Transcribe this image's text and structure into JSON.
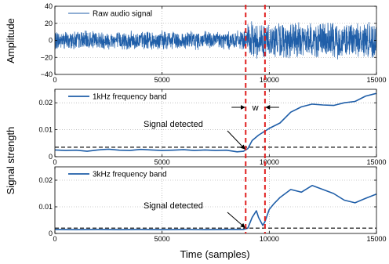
{
  "chart_data": [
    {
      "type": "line",
      "ylabel": "Amplitude",
      "xlim": [
        0,
        15000
      ],
      "ylim": [
        -40,
        40
      ],
      "xticks": [
        0,
        5000,
        10000,
        15000
      ],
      "yticks": [
        -40,
        -20,
        0,
        20,
        40
      ],
      "ytick_labels": [
        "−40",
        "−20",
        "0",
        "20",
        "40"
      ],
      "grid": true,
      "legend": "top-left",
      "series": [
        {
          "name": "Raw audio signal",
          "color": "#1f5ea8",
          "profile": {
            "segments": [
              [
                0,
                9000,
                12
              ],
              [
                9000,
                15000,
                23
              ]
            ]
          }
        }
      ]
    },
    {
      "type": "line",
      "xlim": [
        0,
        15000
      ],
      "ylim": [
        0,
        0.025
      ],
      "xticks": [
        0,
        5000,
        10000,
        15000
      ],
      "yticks": [
        0,
        0.01,
        0.02
      ],
      "ytick_labels": [
        "0",
        "0.01",
        "0.02"
      ],
      "grid": true,
      "legend": "top-left",
      "threshold": 0.0035,
      "series": [
        {
          "name": "1kHz frequency band",
          "color": "#1f5ea8",
          "x": [
            0,
            500,
            1000,
            1500,
            2000,
            2500,
            3000,
            3500,
            4000,
            4500,
            5000,
            5500,
            6000,
            6500,
            7000,
            7500,
            8000,
            8500,
            8800,
            9000,
            9200,
            9500,
            9800,
            10000,
            10500,
            11000,
            11500,
            12000,
            12500,
            13000,
            13500,
            14000,
            14500,
            15000
          ],
          "y": [
            0.0025,
            0.0023,
            0.0024,
            0.002,
            0.0025,
            0.0028,
            0.0024,
            0.0023,
            0.0027,
            0.0025,
            0.0023,
            0.0024,
            0.0026,
            0.0023,
            0.0025,
            0.0023,
            0.0024,
            0.0018,
            0.002,
            0.003,
            0.006,
            0.008,
            0.0095,
            0.0105,
            0.0125,
            0.0165,
            0.0185,
            0.0195,
            0.0192,
            0.019,
            0.02,
            0.0205,
            0.0225,
            0.0235
          ]
        }
      ]
    },
    {
      "type": "line",
      "xlim": [
        0,
        15000
      ],
      "ylim": [
        0,
        0.025
      ],
      "xticks": [
        0,
        5000,
        10000,
        15000
      ],
      "xtick_labels": [
        "0",
        "5000",
        "10000",
        "15000"
      ],
      "yticks": [
        0,
        0.01,
        0.02
      ],
      "ytick_labels": [
        "0",
        "0.01",
        "0.02"
      ],
      "xlabel": "Time (samples)",
      "grid": true,
      "legend": "top-left",
      "threshold": 0.002,
      "series": [
        {
          "name": "3kHz frequency band",
          "color": "#1f5ea8",
          "x": [
            0,
            1000,
            2000,
            3000,
            4000,
            5000,
            6000,
            7000,
            8000,
            8800,
            9000,
            9200,
            9400,
            9500,
            9700,
            9800,
            10000,
            10200,
            10500,
            11000,
            11500,
            12000,
            12500,
            13000,
            13500,
            14000,
            14500,
            15000
          ],
          "y": [
            0.0015,
            0.0014,
            0.0015,
            0.0014,
            0.0015,
            0.0014,
            0.0015,
            0.0014,
            0.0015,
            0.0015,
            0.002,
            0.006,
            0.0085,
            0.006,
            0.003,
            0.0045,
            0.009,
            0.011,
            0.0135,
            0.0165,
            0.0155,
            0.018,
            0.0165,
            0.015,
            0.0125,
            0.0115,
            0.0132,
            0.0148
          ]
        }
      ]
    }
  ],
  "ylabel_shared": "Signal strength",
  "annotations": {
    "detected_1": "Signal detected",
    "detected_2": "Signal detected",
    "window_label": "w"
  },
  "markers": {
    "detection_x": 8900,
    "window_end_x": 9800,
    "color": "#e02020"
  }
}
